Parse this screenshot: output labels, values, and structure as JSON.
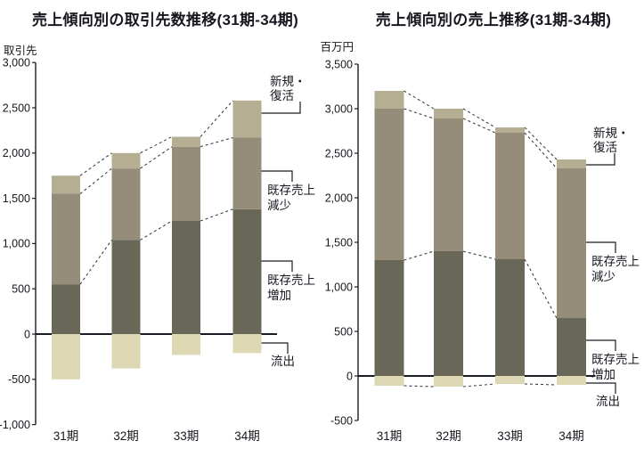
{
  "colors": {
    "axis": "#1b1b24",
    "dashed": "#3f3f46",
    "text": "#17171f",
    "background": "#ffffff",
    "segment_increase": "#696758",
    "segment_decrease": "#958d79",
    "segment_new": "#b6ae92",
    "segment_outflow": "#ded7b3"
  },
  "chart_data": [
    {
      "type": "bar",
      "stacked": true,
      "title": "売上傾向別の取引先数推移(31期-34期)",
      "unit": "取引先",
      "categories": [
        "31期",
        "32期",
        "33期",
        "34期"
      ],
      "series": [
        {
          "name": "既存売上増加",
          "color": "#696758",
          "values": [
            550,
            1040,
            1250,
            1380
          ]
        },
        {
          "name": "既存売上減少",
          "color": "#958d79",
          "values": [
            1000,
            790,
            820,
            790
          ]
        },
        {
          "name": "新規・復活",
          "color": "#b6ae92",
          "values": [
            200,
            170,
            110,
            410
          ]
        },
        {
          "name": "流出",
          "color": "#ded7b3",
          "values": [
            -500,
            -380,
            -230,
            -210
          ]
        }
      ],
      "totals_positive": [
        1750,
        2000,
        2180,
        2580
      ],
      "ylim": [
        -1000,
        3000
      ],
      "ytick_step": 500,
      "grid": false,
      "connect_negative": false,
      "annotations": [
        {
          "text": "新規・復活",
          "lines": [
            "新規・",
            "復活"
          ]
        },
        {
          "text": "既存売上減少",
          "lines": [
            "既存売上",
            "減少"
          ]
        },
        {
          "text": "既存売上増加",
          "lines": [
            "既存売上",
            "増加"
          ]
        },
        {
          "text": "流出",
          "lines": [
            "流出"
          ]
        }
      ]
    },
    {
      "type": "bar",
      "stacked": true,
      "title": "売上傾向別の売上推移(31期-34期)",
      "unit": "百万円",
      "categories": [
        "31期",
        "32期",
        "33期",
        "34期"
      ],
      "series": [
        {
          "name": "既存売上増加",
          "color": "#696758",
          "values": [
            1300,
            1400,
            1310,
            650
          ]
        },
        {
          "name": "既存売上減少",
          "color": "#958d79",
          "values": [
            1700,
            1490,
            1420,
            1680
          ]
        },
        {
          "name": "新規・復活",
          "color": "#b6ae92",
          "values": [
            200,
            110,
            60,
            100
          ]
        },
        {
          "name": "流出",
          "color": "#ded7b3",
          "values": [
            -110,
            -120,
            -90,
            -100
          ]
        }
      ],
      "totals_positive": [
        3200,
        3000,
        2790,
        2430
      ],
      "ylim": [
        -500,
        3500
      ],
      "ytick_step": 500,
      "grid": false,
      "connect_negative": true,
      "annotations": [
        {
          "text": "新規・復活",
          "lines": [
            "新規・",
            "復活"
          ]
        },
        {
          "text": "既存売上減少",
          "lines": [
            "既存売上",
            "減少"
          ]
        },
        {
          "text": "既存売上増加",
          "lines": [
            "既存売上",
            "増加"
          ]
        },
        {
          "text": "流出",
          "lines": [
            "流出"
          ]
        }
      ]
    }
  ]
}
